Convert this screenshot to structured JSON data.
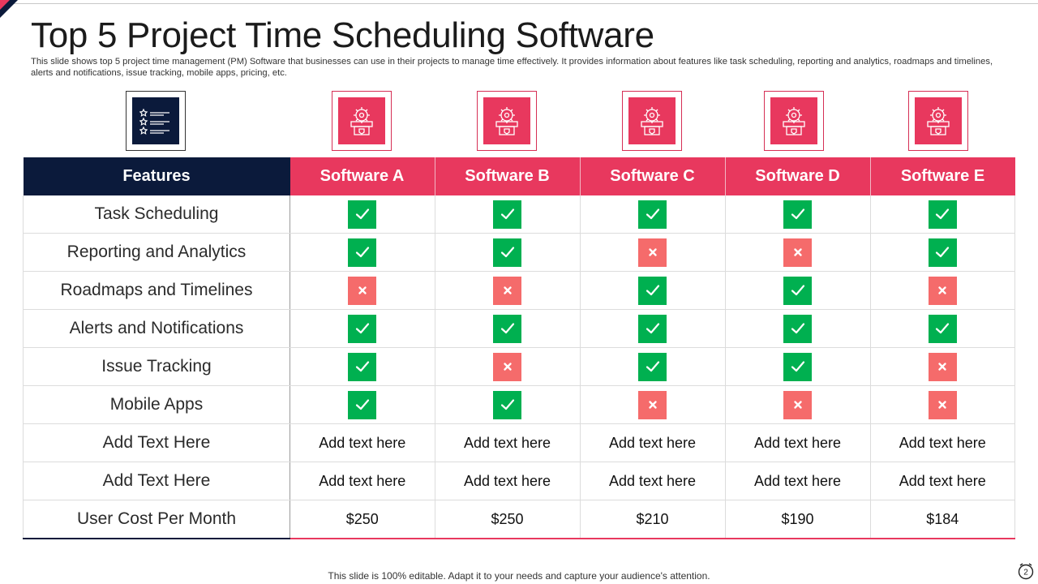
{
  "slide": {
    "title": "Top 5 Project Time Scheduling Software",
    "subtitle": "This slide shows top 5 project time management (PM) Software that businesses can use in their projects to manage time effectively.  It provides information about features like task scheduling, reporting and analytics, roadmaps and timelines, alerts and notifications, issue tracking, mobile apps, pricing, etc.",
    "footer": "This slide is 100% editable. Adapt it to your needs and capture your audience's attention.",
    "page_number": "2"
  },
  "icons": {
    "features_icon": "checklist-icon",
    "software_icon": "gear-software-icon"
  },
  "colors": {
    "navy": "#0b1a3b",
    "accent": "#e8385e",
    "yes": "#00b050",
    "no": "#f56b6b"
  },
  "table": {
    "header": {
      "features": "Features",
      "software": [
        "Software  A",
        "Software  B",
        "Software  C",
        "Software  D",
        "Software  E"
      ]
    },
    "rows": [
      {
        "feature": "Task Scheduling",
        "values": [
          "yes",
          "yes",
          "yes",
          "yes",
          "yes"
        ]
      },
      {
        "feature": "Reporting and Analytics",
        "values": [
          "yes",
          "yes",
          "no",
          "no",
          "yes"
        ]
      },
      {
        "feature": "Roadmaps and Timelines",
        "values": [
          "no",
          "no",
          "yes",
          "yes",
          "no"
        ]
      },
      {
        "feature": "Alerts and Notifications",
        "values": [
          "yes",
          "yes",
          "yes",
          "yes",
          "yes"
        ]
      },
      {
        "feature": "Issue Tracking",
        "values": [
          "yes",
          "no",
          "yes",
          "yes",
          "no"
        ]
      },
      {
        "feature": "Mobile Apps",
        "values": [
          "yes",
          "yes",
          "no",
          "no",
          "no"
        ]
      },
      {
        "feature": "Add Text Here",
        "values": [
          "Add text here",
          "Add text here",
          "Add text here",
          "Add text here",
          "Add text here"
        ]
      },
      {
        "feature": "Add Text Here",
        "values": [
          "Add text here",
          "Add text here",
          "Add text here",
          "Add text here",
          "Add text here"
        ]
      },
      {
        "feature": "User Cost Per Month",
        "values": [
          "$250",
          "$250",
          "$210",
          "$190",
          "$184"
        ]
      }
    ]
  }
}
